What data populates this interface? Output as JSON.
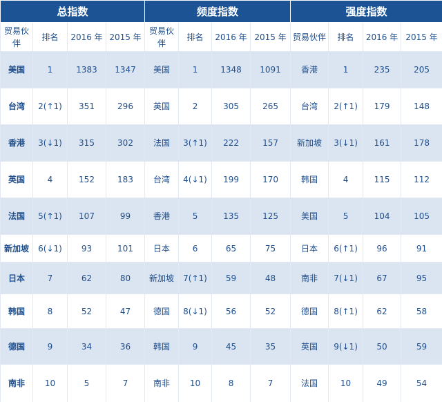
{
  "groups": [
    {
      "title": "总指数",
      "headers": [
        "贸易伙伴",
        "排名",
        "2016 年",
        "2015 年"
      ],
      "rows": [
        [
          "美国",
          "1",
          "1383",
          "1347"
        ],
        [
          "台湾",
          "2(↑1)",
          "351",
          "296"
        ],
        [
          "香港",
          "3(↓1)",
          "315",
          "302"
        ],
        [
          "英国",
          "4",
          "152",
          "183"
        ],
        [
          "法国",
          "5(↑1)",
          "107",
          "99"
        ],
        [
          "新加坡",
          "6(↓1)",
          "93",
          "101"
        ],
        [
          "日本",
          "7",
          "62",
          "80"
        ],
        [
          "韩国",
          "8",
          "52",
          "47"
        ],
        [
          "德国",
          "9",
          "34",
          "36"
        ],
        [
          "南非",
          "10",
          "5",
          "7"
        ]
      ]
    },
    {
      "title": "频度指数",
      "headers": [
        "贸易伙伴",
        "排名",
        "2016 年",
        "2015 年"
      ],
      "rows": [
        [
          "美国",
          "1",
          "1348",
          "1091"
        ],
        [
          "英国",
          "2",
          "305",
          "265"
        ],
        [
          "法国",
          "3(↑1)",
          "222",
          "157"
        ],
        [
          "台湾",
          "4(↓1)",
          "199",
          "170"
        ],
        [
          "香港",
          "5",
          "135",
          "125"
        ],
        [
          "日本",
          "6",
          "65",
          "75"
        ],
        [
          "新加坡",
          "7(↑1)",
          "59",
          "48"
        ],
        [
          "德国",
          "8(↓1)",
          "56",
          "52"
        ],
        [
          "韩国",
          "9",
          "45",
          "35"
        ],
        [
          "南非",
          "10",
          "8",
          "7"
        ]
      ]
    },
    {
      "title": "强度指数",
      "headers": [
        "贸易伙伴",
        "排名",
        "2016 年",
        "2015 年"
      ],
      "rows": [
        [
          "香港",
          "1",
          "235",
          "205"
        ],
        [
          "台湾",
          "2(↑1)",
          "179",
          "148"
        ],
        [
          "新加坡",
          "3(↓1)",
          "161",
          "178"
        ],
        [
          "韩国",
          "4",
          "115",
          "112"
        ],
        [
          "美国",
          "5",
          "104",
          "105"
        ],
        [
          "日本",
          "6(↑1)",
          "96",
          "91"
        ],
        [
          "南非",
          "7(↓1)",
          "67",
          "95"
        ],
        [
          "德国",
          "8(↑1)",
          "62",
          "58"
        ],
        [
          "英国",
          "9(↓1)",
          "50",
          "59"
        ],
        [
          "法国",
          "10",
          "49",
          "54"
        ]
      ]
    }
  ]
}
